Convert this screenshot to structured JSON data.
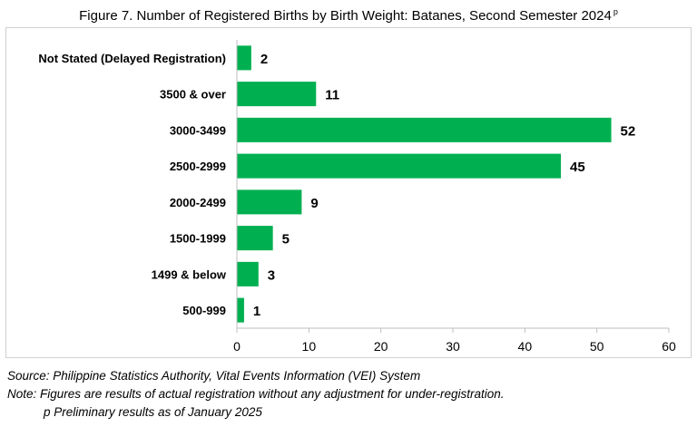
{
  "title": "Figure 7. Number of Registered Births by Birth Weight: Batanes, Second Semester 2024",
  "title_superscript": "p",
  "bar_color": "#00b050",
  "chart_data": {
    "type": "bar",
    "orientation": "horizontal",
    "categories": [
      "Not Stated (Delayed Registration)",
      "3500 & over",
      "3000-3499",
      "2500-2999",
      "2000-2499",
      "1500-1999",
      "1499 & below",
      "500-999"
    ],
    "values": [
      2,
      11,
      52,
      45,
      9,
      5,
      3,
      1
    ],
    "xlim": [
      0,
      60
    ],
    "xticks": [
      0,
      10,
      20,
      30,
      40,
      50,
      60
    ],
    "grid": false,
    "legend": "none"
  },
  "footnotes": {
    "source": "Source: Philippine Statistics Authority, Vital Events Information (VEI) System",
    "note": "Note: Figures are results of actual registration without any adjustment for under-registration.",
    "preliminary": "p Preliminary results as of January 2025"
  }
}
